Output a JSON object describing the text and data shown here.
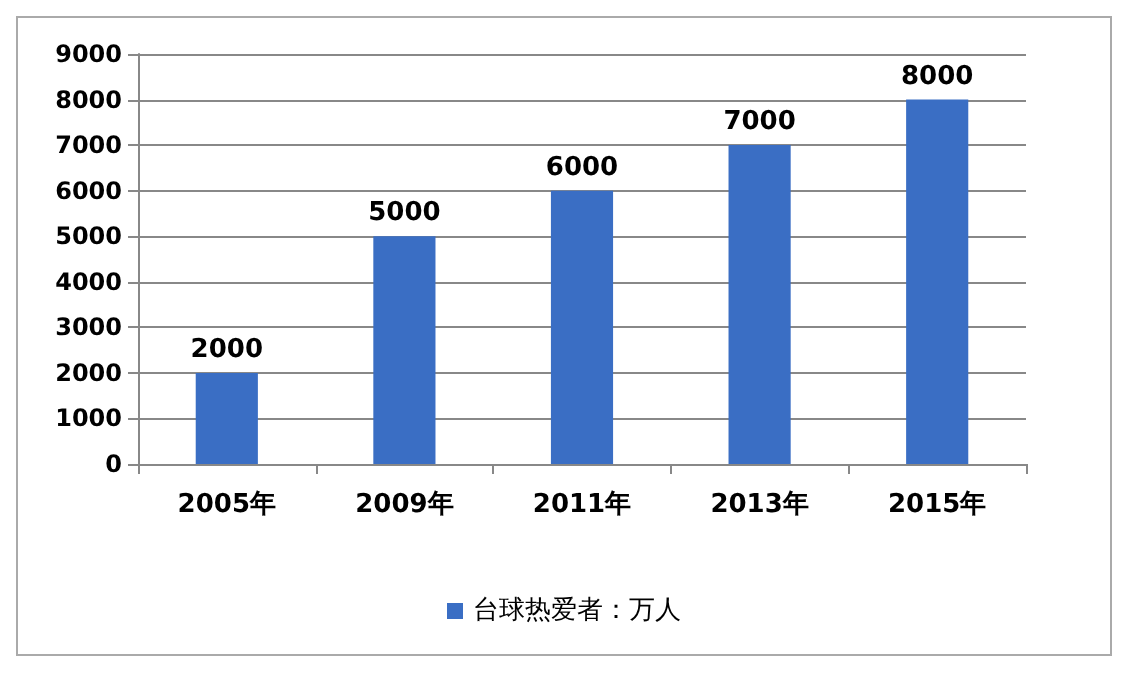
{
  "chart_data": {
    "type": "bar",
    "categories": [
      "2005年",
      "2009年",
      "2011年",
      "2013年",
      "2015年"
    ],
    "series": [
      {
        "name": "台球热爱者：万人",
        "color": "#3a6ec4",
        "values": [
          2000,
          5000,
          6000,
          7000,
          8000
        ]
      }
    ],
    "ylim": [
      0,
      9000
    ],
    "yticks": [
      0,
      1000,
      2000,
      3000,
      4000,
      5000,
      6000,
      7000,
      8000,
      9000
    ],
    "grid": "y",
    "legend": "bottom",
    "data_labels": true
  }
}
